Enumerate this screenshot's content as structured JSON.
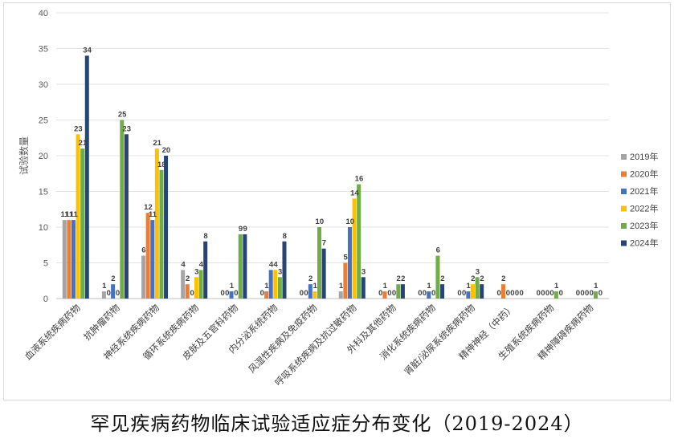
{
  "caption": "罕见疾病药物临床试验适应症分布变化（2019-2024）",
  "chart_data": {
    "type": "bar",
    "title": "",
    "xlabel": "",
    "ylabel": "试验数量",
    "ylim": [
      0,
      40
    ],
    "yticks": [
      0,
      5,
      10,
      15,
      20,
      25,
      30,
      35,
      40
    ],
    "grid": true,
    "legend_position": "right",
    "categories": [
      "血液系统疾病药物",
      "抗肿瘤药物",
      "神经系统疾病药物",
      "循环系统疾病药物",
      "皮肤及五官科药物",
      "内分泌系统药物",
      "风湿性疾病及免疫药物",
      "呼吸系统疾病及抗过敏药物",
      "外科及其他药物",
      "消化系统疾病药物",
      "肾脏/泌尿系统疾病药物",
      "精神神经（中药）",
      "生殖系统疾病药物",
      "精神障碍疾病药物"
    ],
    "series": [
      {
        "name": "2019年",
        "color": "#a5a5a5",
        "values": [
          11,
          1,
          6,
          4,
          0,
          0,
          0,
          1,
          0,
          0,
          0,
          0,
          0,
          0
        ]
      },
      {
        "name": "2020年",
        "color": "#ed7d31",
        "values": [
          11,
          0,
          12,
          2,
          0,
          1,
          0,
          5,
          1,
          0,
          0,
          2,
          0,
          0
        ]
      },
      {
        "name": "2021年",
        "color": "#4472c4",
        "values": [
          11,
          2,
          11,
          0,
          1,
          4,
          2,
          10,
          0,
          1,
          1,
          0,
          0,
          0
        ]
      },
      {
        "name": "2022年",
        "color": "#ffc000",
        "values": [
          23,
          0,
          21,
          3,
          0,
          4,
          1,
          14,
          0,
          0,
          2,
          0,
          0,
          0
        ]
      },
      {
        "name": "2023年",
        "color": "#70ad47",
        "values": [
          21,
          25,
          18,
          4,
          9,
          3,
          10,
          16,
          2,
          6,
          3,
          0,
          1,
          1
        ]
      },
      {
        "name": "2024年",
        "color": "#264478",
        "values": [
          34,
          23,
          20,
          8,
          9,
          8,
          7,
          3,
          2,
          2,
          2,
          0,
          0,
          0
        ]
      }
    ]
  }
}
